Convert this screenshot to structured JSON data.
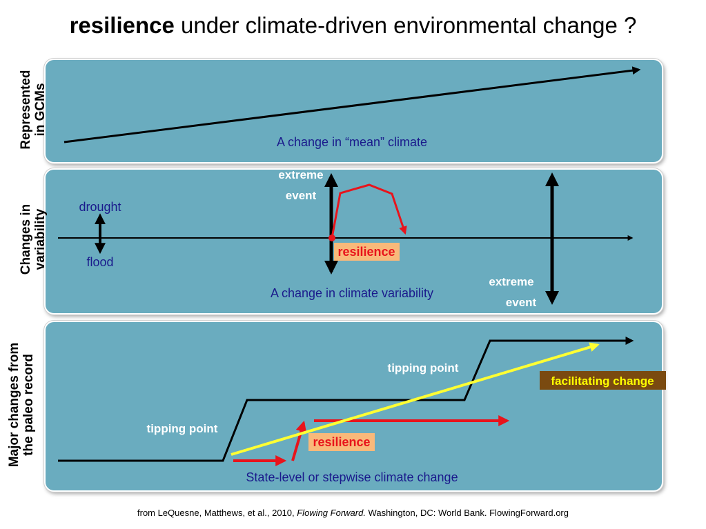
{
  "title": {
    "bold": "resilience",
    "rest": " under climate-driven environmental change ?"
  },
  "side_labels": {
    "panel1": [
      "Represented",
      "in GCMs"
    ],
    "panel2": [
      "Changes in",
      "variability"
    ],
    "panel3": [
      "Major changes from",
      "the paleo record"
    ]
  },
  "panel1": {
    "caption": "A change in “mean” climate"
  },
  "panel2": {
    "caption": "A change in climate variability",
    "drought": "drought",
    "flood": "flood",
    "extreme_top": [
      "extreme",
      "event"
    ],
    "extreme_bottom": [
      "extreme",
      "event"
    ],
    "resilience": "resilience"
  },
  "panel3": {
    "caption": "State-level or stepwise climate change",
    "tipping_point_1": "tipping point",
    "tipping_point_2": "tipping point",
    "resilience": "resilience",
    "facilitating": "facilitating change"
  },
  "footer": {
    "prefix": "from LeQuesne, Matthews, et al., 2010, ",
    "italic": "Flowing Forward.",
    "suffix": " Washington, DC: World Bank. FlowingForward.org"
  },
  "colors": {
    "panel": "#6aacbf",
    "text_blue": "#1a1a8c",
    "red": "#e8141c",
    "yellow": "#ffff33",
    "resilience_bg": "#f9b97a",
    "facilitating_bg": "#7a4a10",
    "facilitating_text": "#ffff00"
  }
}
